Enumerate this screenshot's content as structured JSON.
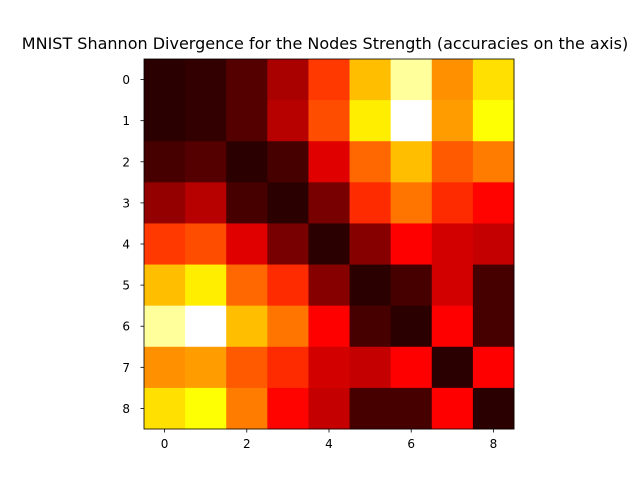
{
  "chart_data": {
    "type": "heatmap",
    "title": "MNIST Shannon Divergence for the Nodes Strength (accuracies on the axis)",
    "colormap": "hot",
    "xticks": [
      0,
      2,
      4,
      6,
      8
    ],
    "yticks": [
      0,
      1,
      2,
      3,
      4,
      5,
      6,
      7,
      8
    ],
    "xlim": [
      -0.5,
      8.5
    ],
    "ylim": [
      8.5,
      -0.5
    ],
    "value_range": [
      0,
      1
    ],
    "matrix": [
      [
        0.02,
        0.03,
        0.08,
        0.2,
        0.45,
        0.65,
        0.9,
        0.58,
        0.7
      ],
      [
        0.02,
        0.03,
        0.08,
        0.22,
        0.48,
        0.72,
        1.0,
        0.6,
        0.75
      ],
      [
        0.06,
        0.08,
        0.02,
        0.06,
        0.28,
        0.52,
        0.65,
        0.5,
        0.55
      ],
      [
        0.17,
        0.22,
        0.06,
        0.02,
        0.13,
        0.43,
        0.54,
        0.43,
        0.37
      ],
      [
        0.45,
        0.48,
        0.28,
        0.13,
        0.02,
        0.15,
        0.34,
        0.26,
        0.24
      ],
      [
        0.65,
        0.72,
        0.52,
        0.43,
        0.15,
        0.02,
        0.06,
        0.26,
        0.06
      ],
      [
        0.9,
        1.0,
        0.65,
        0.54,
        0.34,
        0.06,
        0.02,
        0.34,
        0.06
      ],
      [
        0.58,
        0.6,
        0.5,
        0.43,
        0.26,
        0.24,
        0.34,
        0.02,
        0.34
      ],
      [
        0.7,
        0.75,
        0.55,
        0.37,
        0.24,
        0.06,
        0.06,
        0.34,
        0.02
      ]
    ]
  }
}
